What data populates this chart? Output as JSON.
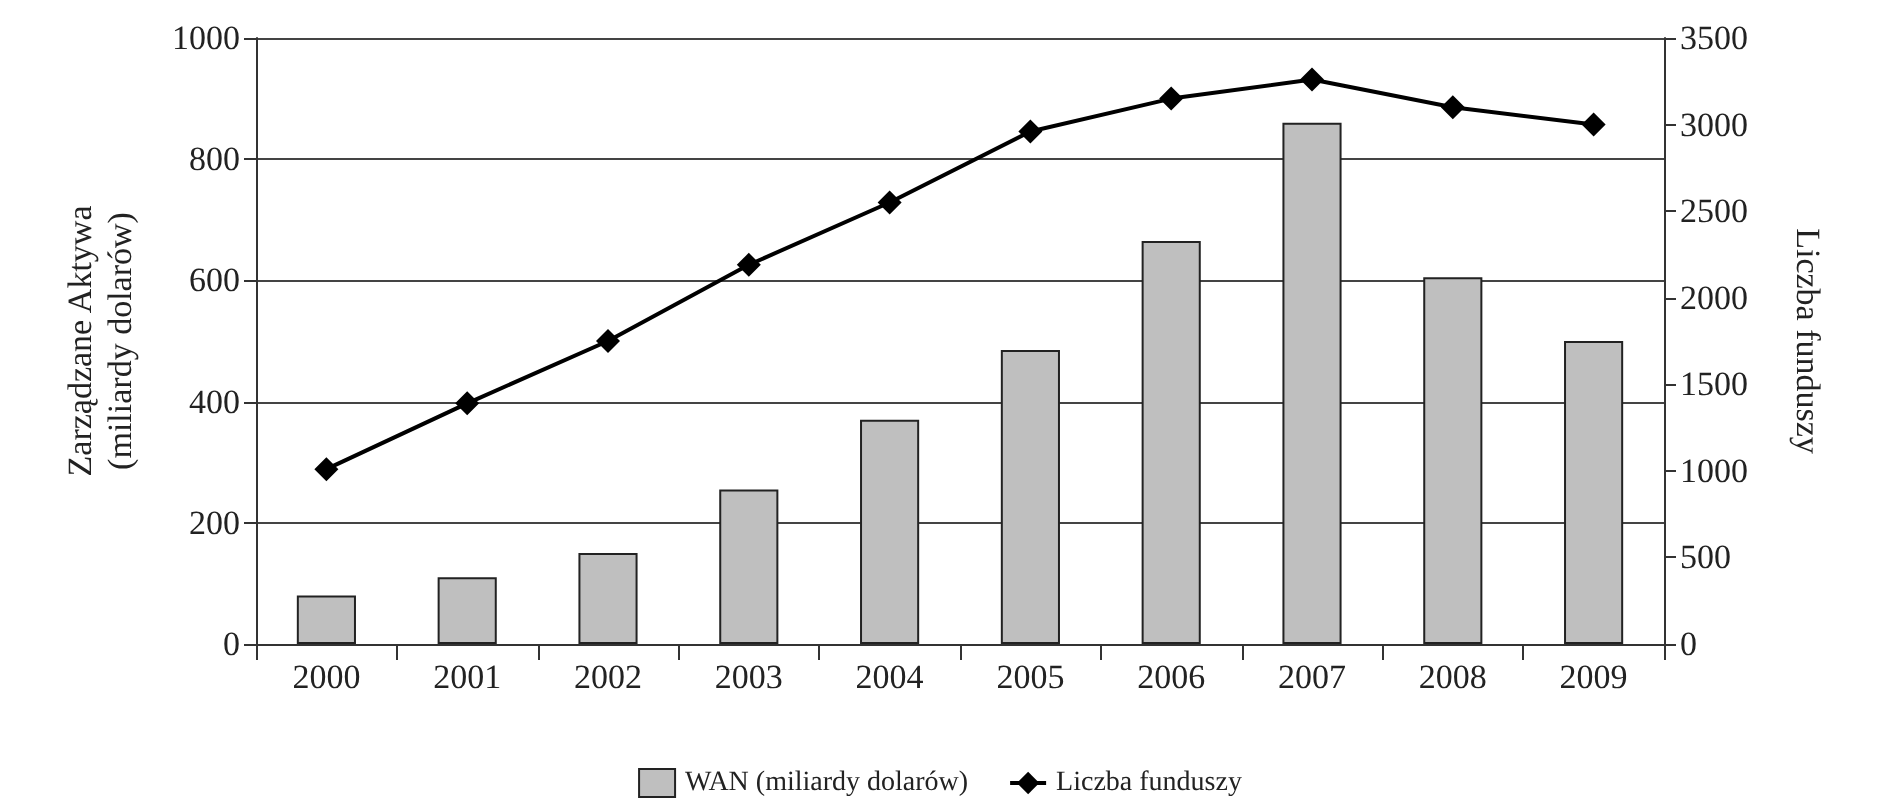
{
  "chart_data": {
    "type": "bar",
    "ylabel": "Zarządzane Aktywa\n(miliardy dolarów)",
    "y2label": "Liczba funduszy",
    "categories": [
      "2000",
      "2001",
      "2002",
      "2003",
      "2004",
      "2005",
      "2006",
      "2007",
      "2008",
      "2009"
    ],
    "series": [
      {
        "name": "WAN (miliardy dolarów)",
        "color": "#bfbfbf",
        "values": [
          80,
          110,
          150,
          255,
          370,
          485,
          665,
          860,
          605,
          500
        ]
      },
      {
        "name": "Liczba funduszy",
        "type": "line",
        "axis": "y2",
        "color": "#000000",
        "marker": "diamond",
        "values": [
          1010,
          1390,
          1750,
          2190,
          2550,
          2960,
          3150,
          3260,
          3100,
          3000
        ]
      }
    ],
    "ylim": [
      0,
      1000
    ],
    "yticks": [
      0,
      200,
      400,
      600,
      800,
      1000
    ],
    "y2lim": [
      0,
      3500
    ],
    "y2ticks": [
      0,
      500,
      1000,
      1500,
      2000,
      2500,
      3000,
      3500
    ],
    "grid": "y",
    "legend": "bottom"
  }
}
